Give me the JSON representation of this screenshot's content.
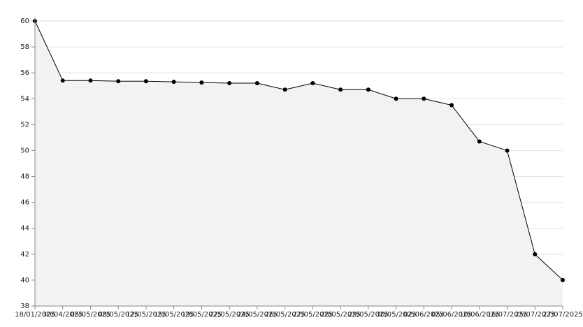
{
  "chart_data": {
    "type": "area",
    "categories": [
      "18/01/2025",
      "30/04/2025",
      "05/05/2025",
      "08/05/2025",
      "12/05/2025",
      "15/05/2025",
      "19/05/2025",
      "22/05/2025",
      "24/05/2025",
      "26/05/2025",
      "27/05/2025",
      "28/05/2025",
      "29/05/2025",
      "30/05/2025",
      "02/06/2025",
      "05/06/2025",
      "10/06/2025",
      "16/07/2025",
      "25/07/2025",
      "27/07/2025"
    ],
    "series": [
      {
        "color": "#000000",
        "fill": "#f2f2f2",
        "values": [
          60,
          55.4,
          55.4,
          55.35,
          55.35,
          55.3,
          55.25,
          55.2,
          55.2,
          54.7,
          55.2,
          54.7,
          54.7,
          54.0,
          54.0,
          53.5,
          50.7,
          50.0,
          42.0,
          40.0
        ]
      }
    ],
    "ylim": [
      38,
      60
    ],
    "yticks": [
      38,
      40,
      42,
      44,
      46,
      48,
      50,
      52,
      54,
      56,
      58,
      60
    ],
    "grid": true
  }
}
